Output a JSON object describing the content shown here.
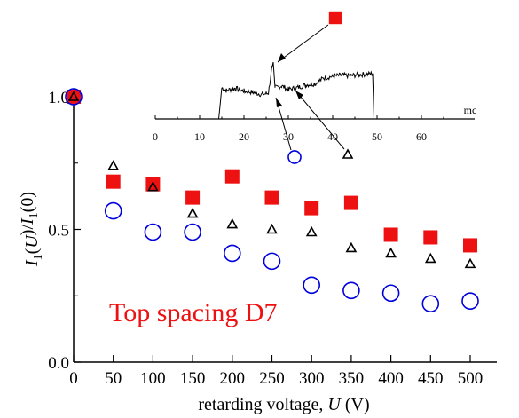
{
  "chart_data": {
    "type": "scatter",
    "title": "",
    "xlabel": "retarding voltage, U (V)",
    "xlabel_parts": [
      "retarding voltage, ",
      "U",
      " (V)"
    ],
    "ylabel": "I1(U)/I1(0)",
    "ylabel_parts": [
      "I",
      "1",
      "(",
      "U",
      ")/",
      "I",
      "1",
      "(0)"
    ],
    "xlim": [
      0,
      500
    ],
    "ylim": [
      0,
      1
    ],
    "xticks": [
      "0",
      "50",
      "100",
      "150",
      "200",
      "250",
      "300",
      "350",
      "400",
      "450",
      "500"
    ],
    "yticks": [
      "0.0",
      "0.5",
      "1.0"
    ],
    "annotation": "Top spacing D7",
    "series": [
      {
        "marker": "square",
        "color": "#ee1111",
        "points": [
          [
            0,
            1.0
          ],
          [
            50,
            0.68
          ],
          [
            100,
            0.67
          ],
          [
            150,
            0.62
          ],
          [
            200,
            0.7
          ],
          [
            250,
            0.62
          ],
          [
            300,
            0.58
          ],
          [
            350,
            0.6
          ],
          [
            400,
            0.48
          ],
          [
            450,
            0.47
          ],
          [
            500,
            0.44
          ]
        ]
      },
      {
        "marker": "triangle",
        "color": "#000000",
        "points": [
          [
            0,
            1.0
          ],
          [
            50,
            0.74
          ],
          [
            100,
            0.66
          ],
          [
            150,
            0.56
          ],
          [
            200,
            0.52
          ],
          [
            250,
            0.5
          ],
          [
            300,
            0.49
          ],
          [
            350,
            0.43
          ],
          [
            400,
            0.41
          ],
          [
            450,
            0.39
          ],
          [
            500,
            0.37
          ]
        ]
      },
      {
        "marker": "circle",
        "color": "#0000dd",
        "points": [
          [
            0,
            1.0
          ],
          [
            50,
            0.57
          ],
          [
            100,
            0.49
          ],
          [
            150,
            0.49
          ],
          [
            200,
            0.41
          ],
          [
            250,
            0.38
          ],
          [
            300,
            0.29
          ],
          [
            350,
            0.27
          ],
          [
            400,
            0.26
          ],
          [
            450,
            0.22
          ],
          [
            500,
            0.23
          ]
        ]
      }
    ],
    "inset": {
      "type": "line",
      "xlabel": "mc",
      "xlim": [
        0,
        70
      ],
      "xticks": [
        "0",
        "10",
        "20",
        "30",
        "40",
        "50",
        "60"
      ],
      "legend_markers": [
        {
          "marker": "square",
          "color": "#ee1111",
          "x": 27
        },
        {
          "marker": "circle",
          "color": "#0000dd",
          "x": 30
        },
        {
          "marker": "triangle",
          "color": "#000000",
          "x": 40
        }
      ],
      "signal": [
        [
          0,
          0
        ],
        [
          14.3,
          0
        ],
        [
          15,
          0.55
        ],
        [
          16,
          0.5
        ],
        [
          18,
          0.54
        ],
        [
          20,
          0.49
        ],
        [
          22,
          0.47
        ],
        [
          24,
          0.43
        ],
        [
          25.5,
          0.45
        ],
        [
          26.3,
          0.9
        ],
        [
          26.6,
          1.0
        ],
        [
          27,
          0.55
        ],
        [
          28.5,
          0.58
        ],
        [
          30,
          0.52
        ],
        [
          32,
          0.55
        ],
        [
          34,
          0.6
        ],
        [
          36,
          0.62
        ],
        [
          38,
          0.72
        ],
        [
          40,
          0.75
        ],
        [
          42,
          0.77
        ],
        [
          44,
          0.76
        ],
        [
          46,
          0.78
        ],
        [
          48,
          0.79
        ],
        [
          49,
          0.8
        ],
        [
          49.3,
          0
        ],
        [
          52,
          0
        ],
        [
          69,
          0
        ]
      ]
    },
    "colors": {
      "square": "#ee1111",
      "circle": "#0000dd",
      "triangle": "#000000",
      "annotation": "#ee1111"
    }
  }
}
